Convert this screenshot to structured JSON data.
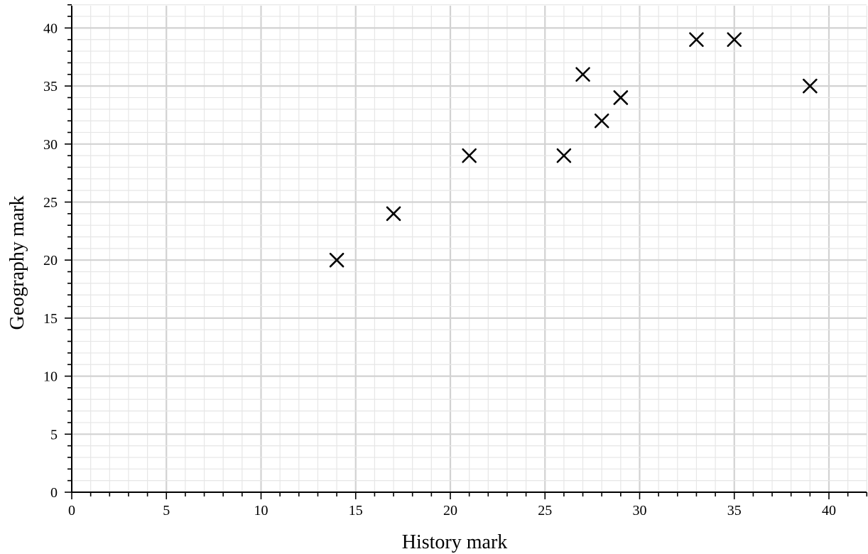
{
  "chart_data": {
    "type": "scatter",
    "title": "",
    "xlabel": "History mark",
    "ylabel": "Geography mark",
    "xlim": [
      0,
      42
    ],
    "ylim": [
      0,
      42
    ],
    "x_ticks": [
      "0",
      "5",
      "10",
      "15",
      "20",
      "25",
      "30",
      "35",
      "40"
    ],
    "y_ticks": [
      "0",
      "5",
      "10",
      "15",
      "20",
      "25",
      "30",
      "35",
      "40"
    ],
    "grid": true,
    "marker": "cross",
    "points": [
      {
        "x": 14,
        "y": 20
      },
      {
        "x": 17,
        "y": 24
      },
      {
        "x": 21,
        "y": 29
      },
      {
        "x": 26,
        "y": 29
      },
      {
        "x": 27,
        "y": 36
      },
      {
        "x": 28,
        "y": 32
      },
      {
        "x": 29,
        "y": 34
      },
      {
        "x": 33,
        "y": 39
      },
      {
        "x": 35,
        "y": 39
      },
      {
        "x": 39,
        "y": 35
      }
    ],
    "colors": {
      "marker": "#000000",
      "axis": "#000000",
      "grid_minor": "#e6e6e6",
      "grid_major": "#d2d2d2"
    }
  }
}
